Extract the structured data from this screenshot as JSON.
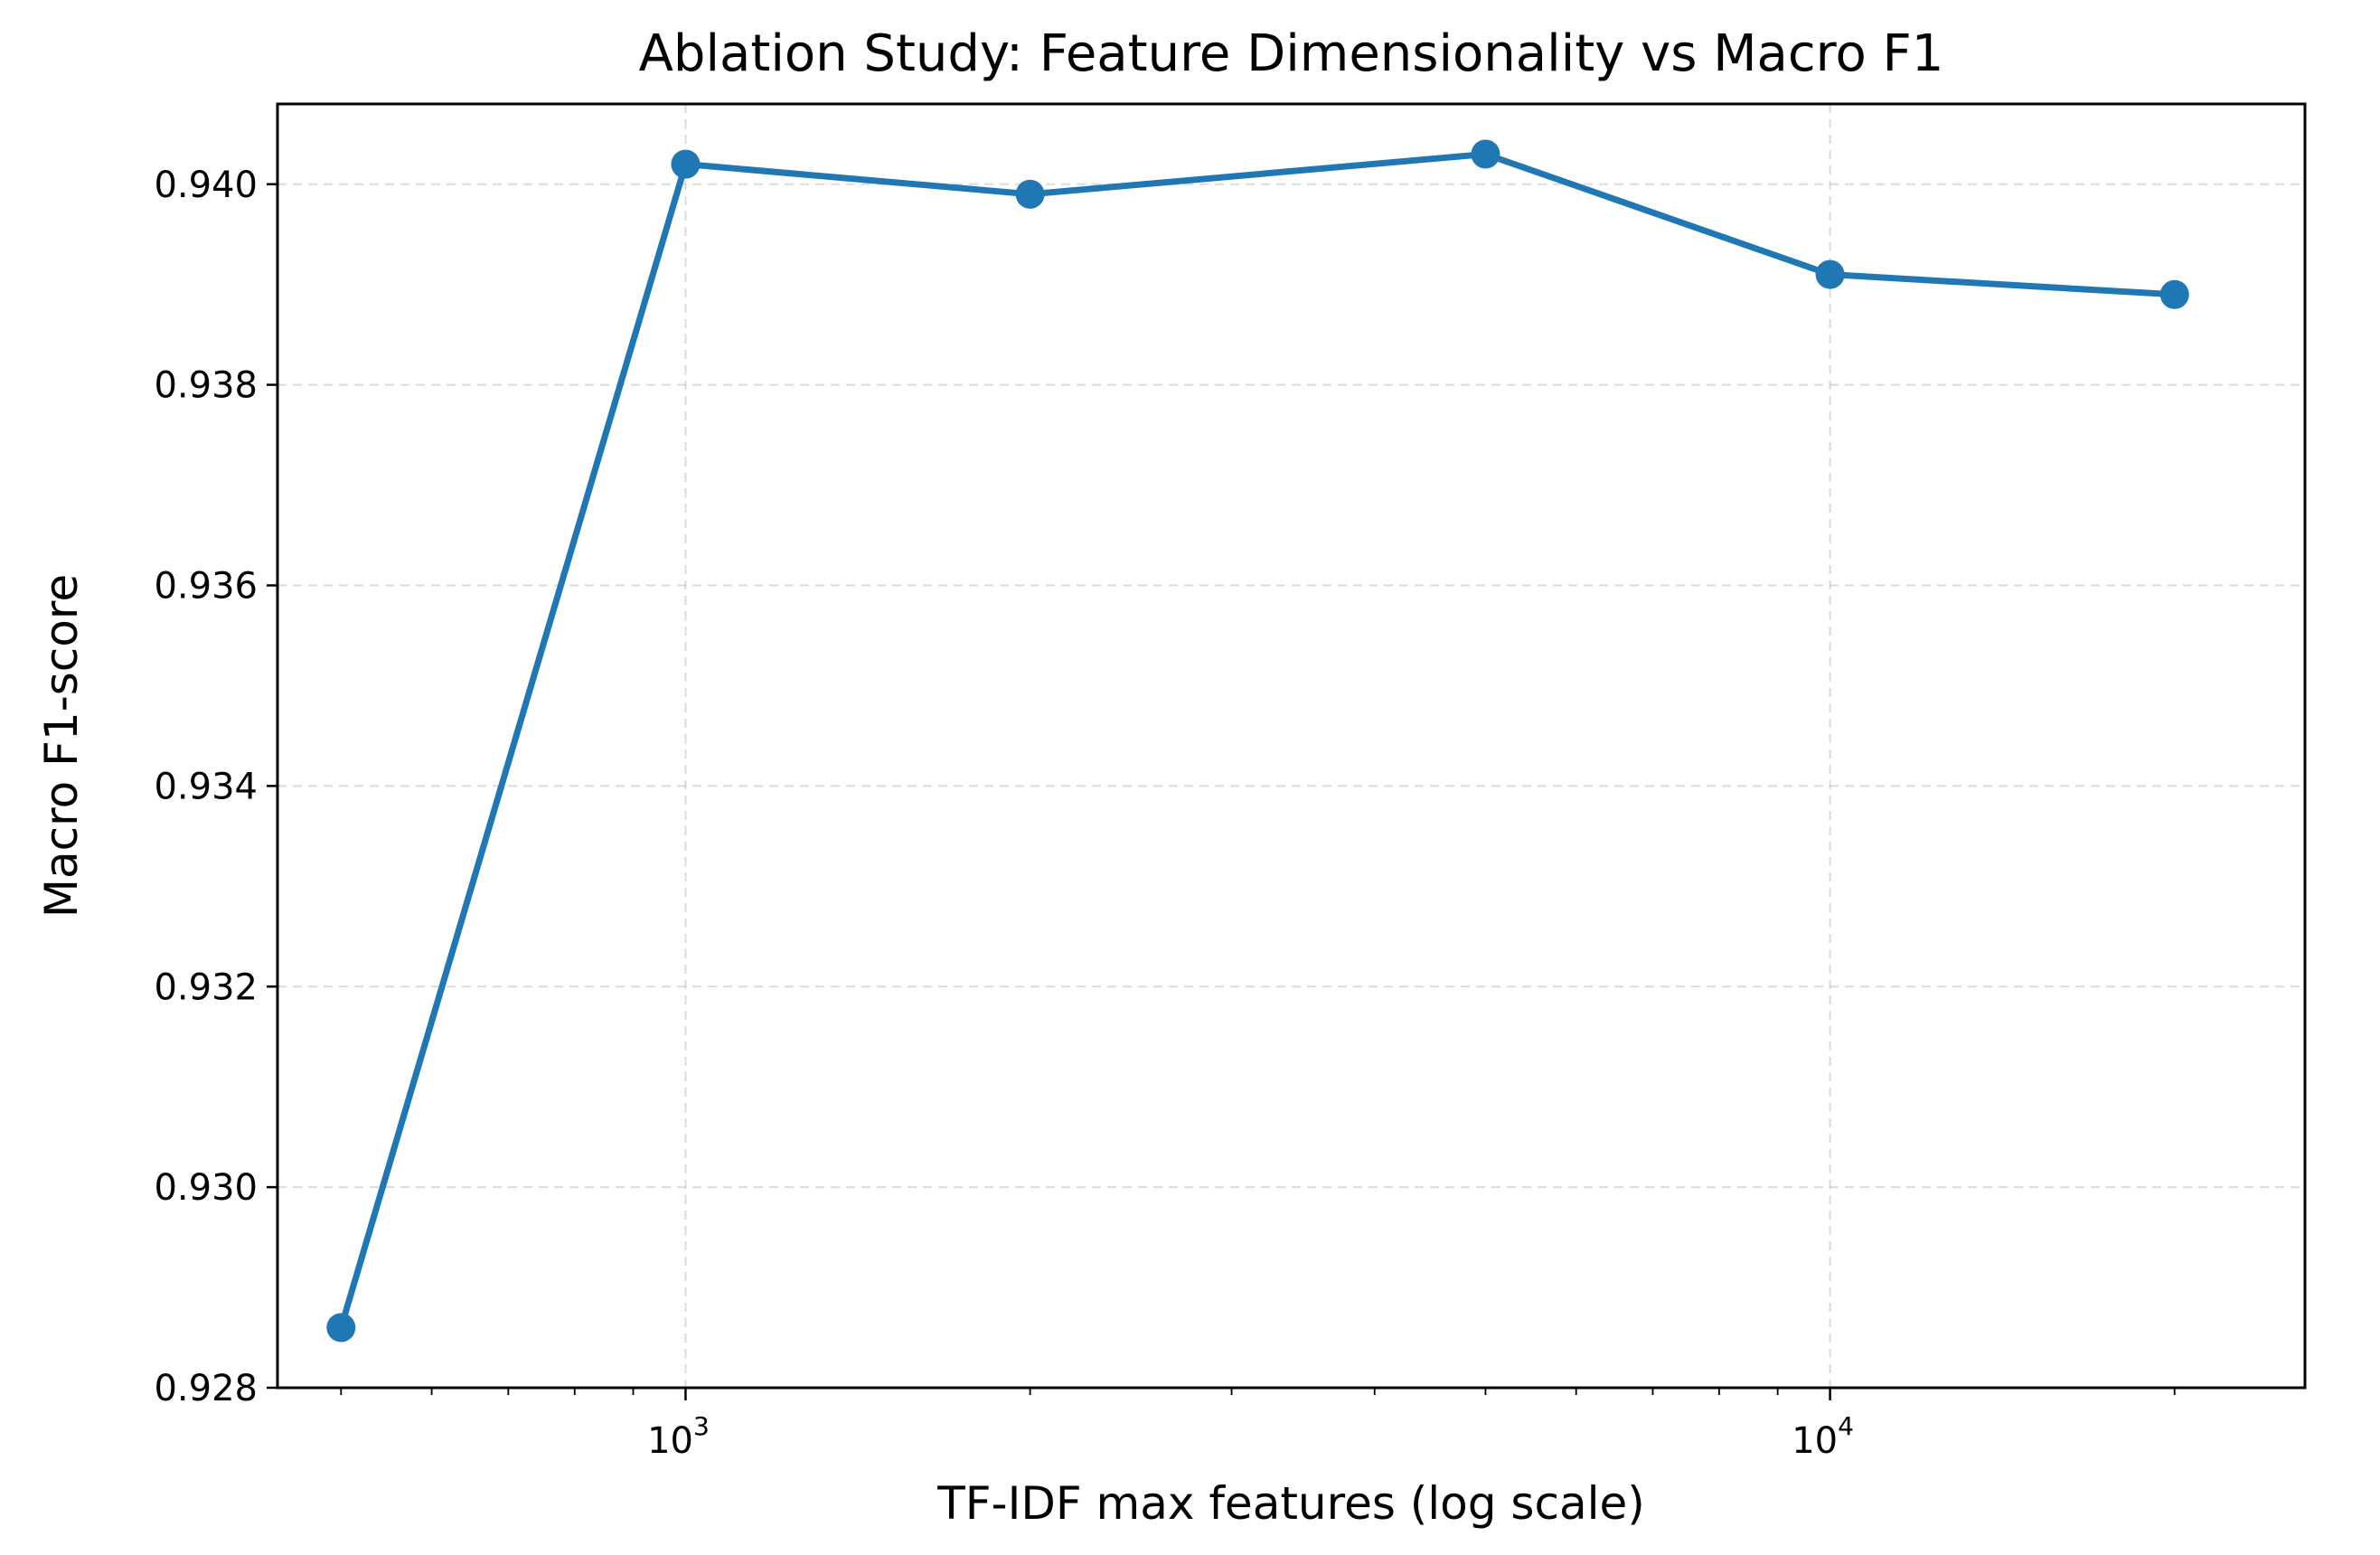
{
  "chart_data": {
    "type": "line",
    "title": "Ablation Study: Feature Dimensionality vs Macro F1",
    "xlabel": "TF-IDF max features (log scale)",
    "ylabel": "Macro F1-score",
    "x_scale": "log",
    "xlim": [
      440,
      26000
    ],
    "ylim": [
      0.928,
      0.9408
    ],
    "x_ticks": [
      {
        "value": 1000,
        "base": "10",
        "exp": "3"
      },
      {
        "value": 10000,
        "base": "10",
        "exp": "4"
      }
    ],
    "y_ticks": [
      {
        "value": 0.928,
        "label": "0.928"
      },
      {
        "value": 0.93,
        "label": "0.930"
      },
      {
        "value": 0.932,
        "label": "0.932"
      },
      {
        "value": 0.934,
        "label": "0.934"
      },
      {
        "value": 0.936,
        "label": "0.936"
      },
      {
        "value": 0.938,
        "label": "0.938"
      },
      {
        "value": 0.94,
        "label": "0.940"
      }
    ],
    "grid": true,
    "grid_style": "dashed",
    "series": [
      {
        "x": [
          500,
          1000,
          2000,
          5000,
          10000,
          20000
        ],
        "y": [
          0.9286,
          0.9402,
          0.9399,
          0.9403,
          0.9391,
          0.9389
        ],
        "color": "#1f77b4",
        "marker": "circle"
      }
    ]
  }
}
